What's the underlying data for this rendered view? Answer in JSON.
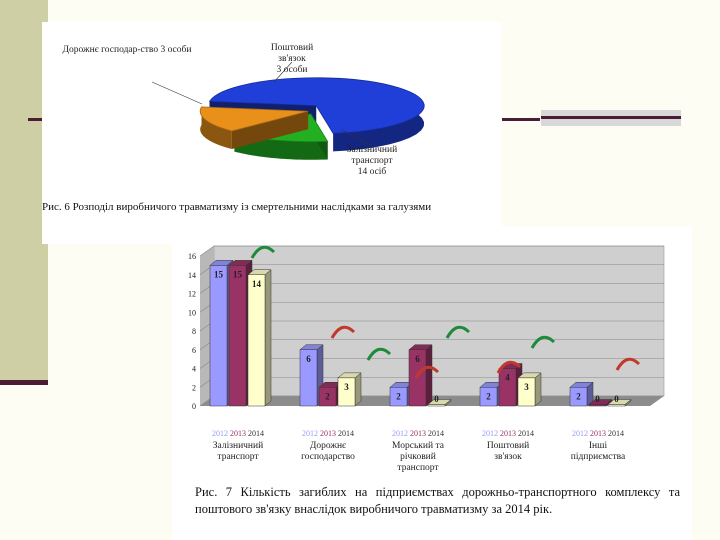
{
  "fig6": {
    "caption": "Рис. 6 Розподіл виробничого травматизму із смертельними наслідками за галузями",
    "slices": [
      {
        "label": "Залізничний транспорт 14 осіб",
        "value": 14,
        "color": "#1f3fd8"
      },
      {
        "label": "Дорожнє господар-ство 3 особи",
        "value": 3,
        "color": "#22b022"
      },
      {
        "label": "Поштовий зв'язок 3 особи",
        "value": 3,
        "color": "#e8901a"
      }
    ]
  },
  "fig7": {
    "caption": "Рис. 7 Кількість загиблих на підприємствах дорожньо-транспортного комплексу та поштового зв'язку внаслідок виробничого травматизму за 2014 рік."
  },
  "chart_data": [
    {
      "type": "pie",
      "title": "",
      "categories": [
        "Залізничний транспорт",
        "Дорожнє господар-ство",
        "Поштовий зв'язок"
      ],
      "values": [
        14,
        3,
        3
      ]
    },
    {
      "type": "bar",
      "title": "",
      "categories": [
        "Залізничний транспорт",
        "Дорожнє господарство",
        "Морський та річковий транспорт",
        "Поштовий зв'язок",
        "Інші підприємства"
      ],
      "series": [
        {
          "name": "2012",
          "color": "#9999ff",
          "values": [
            15,
            6,
            2,
            2,
            2
          ]
        },
        {
          "name": "2013",
          "color": "#993366",
          "values": [
            15,
            2,
            6,
            4,
            0
          ]
        },
        {
          "name": "2014",
          "color": "#ffffcc",
          "values": [
            14,
            3,
            0,
            3,
            0
          ]
        }
      ],
      "year_labels": [
        "2012",
        "2013",
        "2014"
      ],
      "yticks": [
        0,
        2,
        4,
        6,
        8,
        10,
        12,
        14,
        16
      ],
      "ylim": [
        0,
        16
      ],
      "grid": true
    }
  ]
}
